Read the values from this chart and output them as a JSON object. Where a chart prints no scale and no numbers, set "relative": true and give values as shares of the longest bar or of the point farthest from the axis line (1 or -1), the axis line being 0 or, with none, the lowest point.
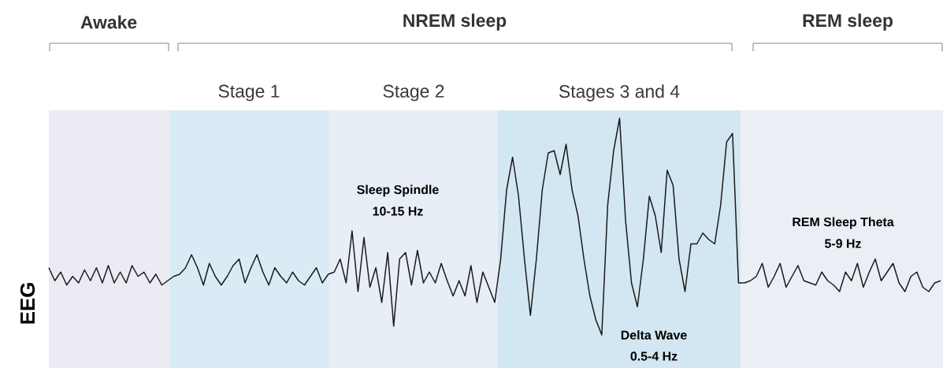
{
  "chart_data": {
    "type": "line",
    "relative": true,
    "ylabel": "EEG",
    "color": "#1a1a1a",
    "categories": [
      null,
      null,
      null,
      null,
      null,
      null,
      null,
      null,
      null,
      null,
      null,
      null,
      null,
      null,
      null,
      null,
      null,
      null,
      null,
      null,
      null,
      null,
      null,
      null,
      null,
      null,
      null,
      null,
      null,
      null,
      null,
      null,
      null,
      null,
      null,
      null,
      null,
      null,
      null,
      null,
      null,
      null,
      null,
      null,
      null,
      null,
      null,
      null,
      null,
      null,
      null,
      null,
      null,
      null,
      null,
      null,
      null,
      null,
      null,
      null,
      null,
      null,
      null,
      null,
      null,
      null,
      null,
      null,
      null,
      null,
      null,
      null,
      null,
      null,
      null,
      null,
      null,
      null,
      null,
      null,
      null,
      null,
      null,
      null,
      null,
      null,
      null,
      null,
      null,
      null,
      null,
      null,
      null,
      null,
      null,
      null,
      null,
      null,
      null,
      null,
      null,
      null,
      null,
      null,
      null,
      null,
      null,
      null,
      null,
      null,
      null,
      null,
      null,
      null,
      null,
      null,
      null,
      null,
      null,
      null,
      null,
      null,
      null,
      null,
      null,
      null,
      null,
      null,
      null,
      null,
      null,
      null,
      null,
      null,
      null,
      null,
      null,
      null,
      null,
      null,
      null,
      null,
      null,
      null,
      null,
      null,
      null,
      null,
      null,
      null,
      null
    ],
    "values": [
      0.31,
      0.25,
      0.29,
      0.23,
      0.27,
      0.24,
      0.3,
      0.25,
      0.31,
      0.24,
      0.32,
      0.24,
      0.29,
      0.24,
      0.32,
      0.27,
      0.29,
      0.24,
      0.28,
      0.23,
      0.25,
      0.27,
      0.28,
      0.31,
      0.37,
      0.31,
      0.23,
      0.33,
      0.27,
      0.23,
      0.27,
      0.32,
      0.35,
      0.24,
      0.31,
      0.37,
      0.29,
      0.23,
      0.31,
      0.27,
      0.24,
      0.29,
      0.25,
      0.23,
      0.27,
      0.31,
      0.24,
      0.28,
      0.29,
      0.35,
      0.24,
      0.48,
      0.2,
      0.45,
      0.22,
      0.31,
      0.15,
      0.38,
      0.04,
      0.35,
      0.38,
      0.23,
      0.39,
      0.24,
      0.29,
      0.24,
      0.33,
      0.25,
      0.18,
      0.25,
      0.18,
      0.32,
      0.15,
      0.29,
      0.22,
      0.15,
      0.35,
      0.67,
      0.82,
      0.64,
      0.35,
      0.09,
      0.35,
      0.67,
      0.84,
      0.85,
      0.74,
      0.88,
      0.67,
      0.55,
      0.35,
      0.18,
      0.07,
      0,
      0.6,
      0.85,
      1,
      0.53,
      0.24,
      0.13,
      0.35,
      0.64,
      0.55,
      0.38,
      0.76,
      0.69,
      0.35,
      0.2,
      0.42,
      0.42,
      0.47,
      0.44,
      0.42,
      0.6,
      0.89,
      0.93,
      0.24,
      0.24,
      0.25,
      0.27,
      0.33,
      0.22,
      0.27,
      0.33,
      0.22,
      0.27,
      0.32,
      0.25,
      0.24,
      0.23,
      0.29,
      0.25,
      0.23,
      0.2,
      0.29,
      0.25,
      0.33,
      0.22,
      0.29,
      0.35,
      0.25,
      0.29,
      0.33,
      0.24,
      0.2,
      0.27,
      0.29,
      0.22,
      0.2,
      0.24,
      0.25
    ],
    "annotations": [
      "Awake",
      "NREM sleep",
      "REM sleep",
      "Stage 1",
      "Stage 2",
      "Stages 3 and 4",
      "Sleep Spindle",
      "10-15 Hz",
      "Delta Wave",
      "0.5-4 Hz",
      "REM Sleep Theta",
      "5-9 Hz"
    ]
  }
}
